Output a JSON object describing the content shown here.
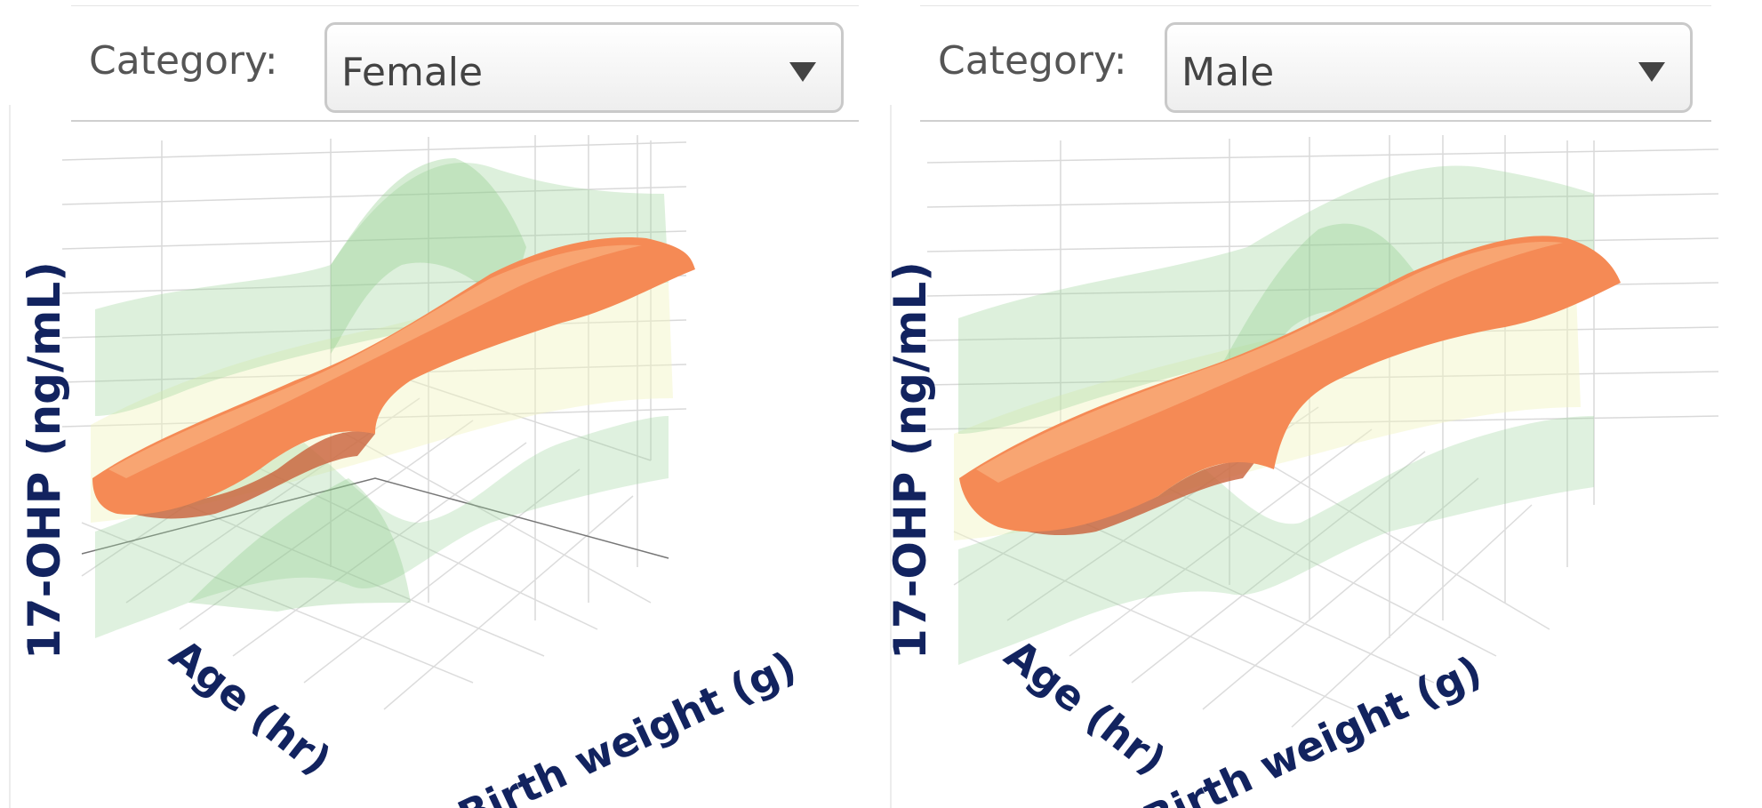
{
  "panels": [
    {
      "category_label": "Category:",
      "category_value": "Female",
      "z_axis_label": "17-OHP (ng/mL)",
      "age_axis_label": "Age (hr)",
      "weight_axis_label": "Birth weight (g)"
    },
    {
      "category_label": "Category:",
      "category_value": "Male",
      "z_axis_label": "17-OHP (ng/mL)",
      "age_axis_label": "Age (hr)",
      "weight_axis_label": "Birth weight (g)"
    }
  ],
  "colors": {
    "median_surface": "#f58a55",
    "median_surface_dark": "#c9603a",
    "percentile_surface_green": "#8fcf8c",
    "percentile_surface_yellow": "#f2f5c0",
    "axis_text": "#12235f",
    "grid": "#d6d6d6"
  },
  "chart_data": [
    {
      "type": "surface3d",
      "category": "Female",
      "xlabel": "Age (hr)",
      "ylabel": "Birth weight (g)",
      "zlabel": "17-OHP (ng/mL)",
      "surfaces": [
        "median (orange)",
        "upper percentile (green)",
        "lower percentile (green)",
        "outer percentiles (yellow)"
      ],
      "grid": true,
      "tick_labels_visible": false
    },
    {
      "type": "surface3d",
      "category": "Male",
      "xlabel": "Age (hr)",
      "ylabel": "Birth weight (g)",
      "zlabel": "17-OHP (ng/mL)",
      "surfaces": [
        "median (orange)",
        "upper percentile (green)",
        "lower percentile (green)",
        "outer percentiles (yellow)"
      ],
      "grid": true,
      "tick_labels_visible": false
    }
  ]
}
